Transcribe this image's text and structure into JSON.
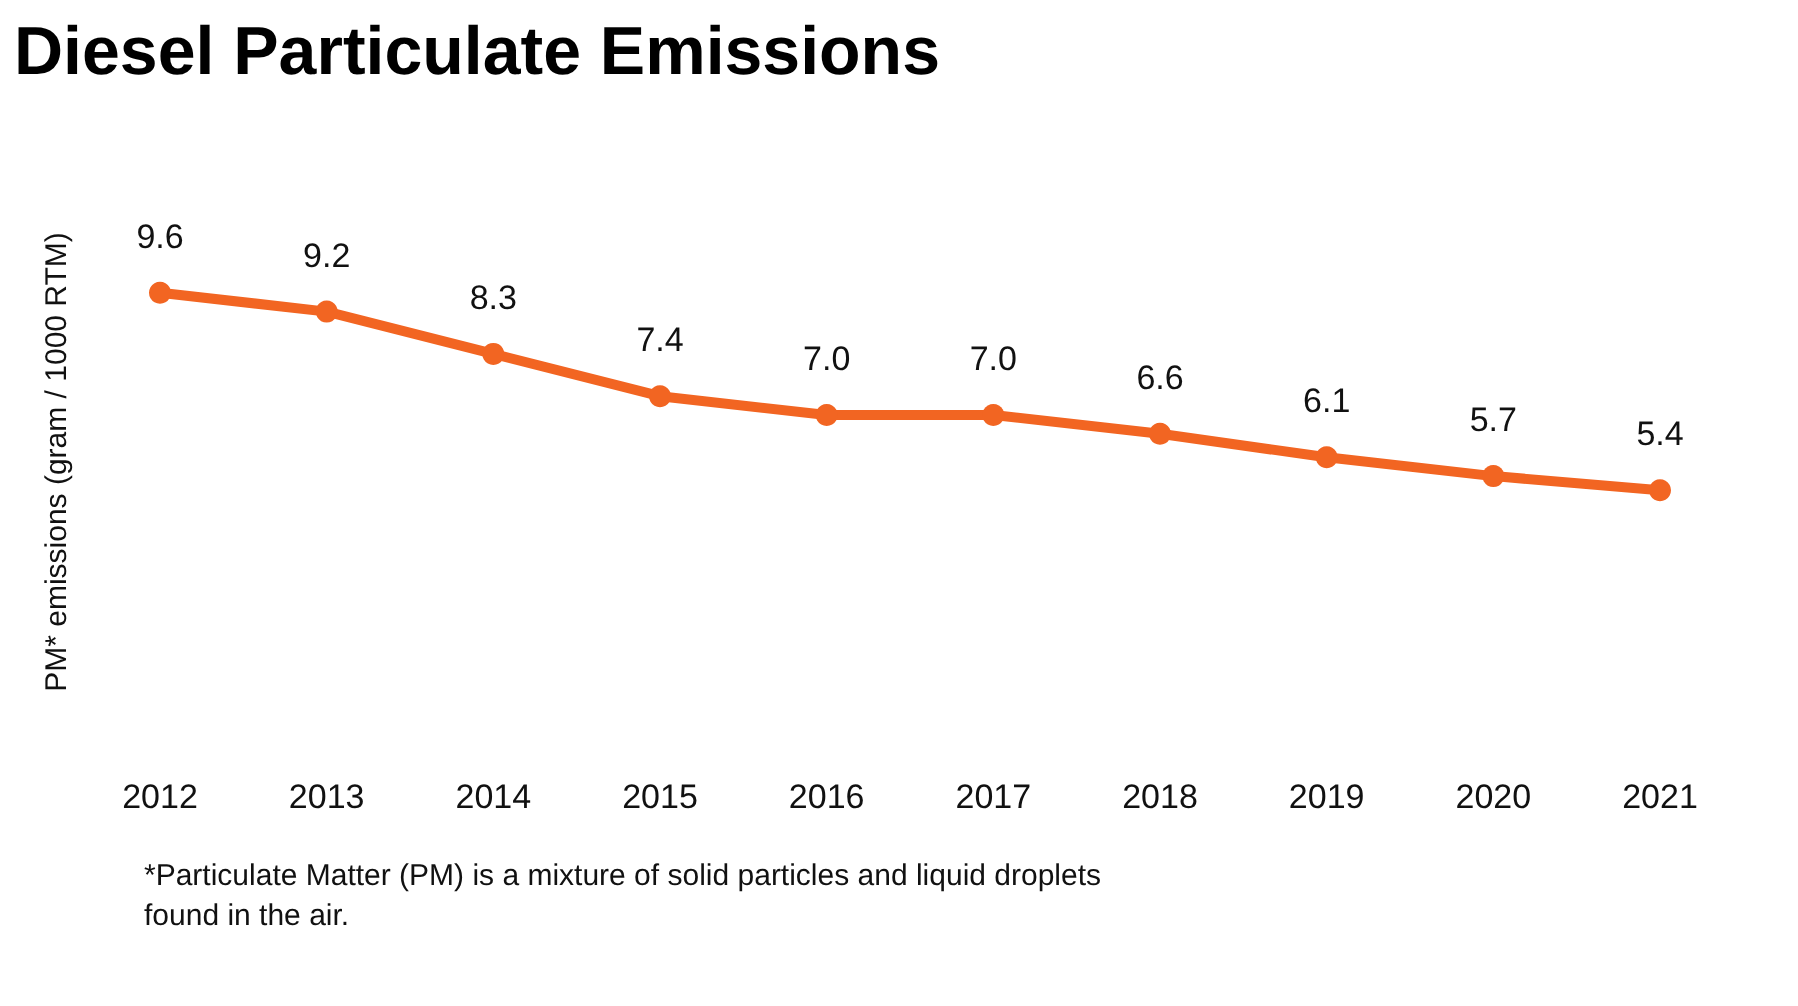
{
  "chart_data": {
    "type": "line",
    "title": "Diesel Particulate Emissions",
    "ylabel": "PM* emissions (gram / 1000 RTM)",
    "categories": [
      "2012",
      "2013",
      "2014",
      "2015",
      "2016",
      "2017",
      "2018",
      "2019",
      "2020",
      "2021"
    ],
    "series": [
      {
        "color": "#f26522",
        "values": [
          9.6,
          9.2,
          8.3,
          7.4,
          7.0,
          7.0,
          6.6,
          6.1,
          5.7,
          5.4
        ],
        "value_labels": [
          "9.6",
          "9.2",
          "8.3",
          "7.4",
          "7.0",
          "7.0",
          "6.6",
          "6.1",
          "5.7",
          "5.4"
        ]
      }
    ],
    "marker": "circle",
    "line_style": "solid",
    "annotations": [
      "*Particulate Matter (PM) is a mixture of solid particles and liquid droplets found in the air."
    ]
  }
}
